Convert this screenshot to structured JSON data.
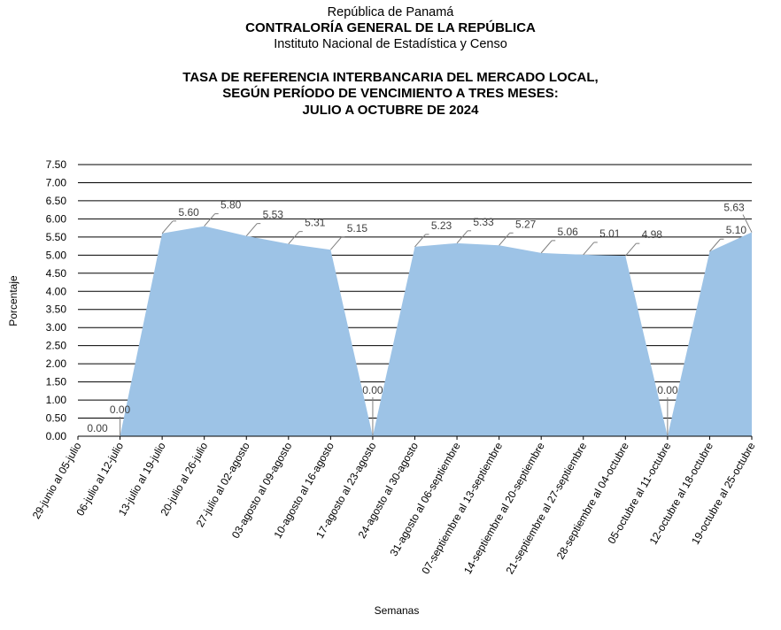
{
  "header": {
    "line1": "República de Panamá",
    "line2": "CONTRALORÍA GENERAL DE LA REPÚBLICA",
    "line3": "Instituto Nacional de Estadística y Censo"
  },
  "chart_data": {
    "type": "area",
    "title": [
      "TASA DE REFERENCIA INTERBANCARIA DEL MERCADO LOCAL,",
      "SEGÚN PERÍODO DE VENCIMIENTO A TRES MESES:",
      "JULIO A OCTUBRE DE 2024"
    ],
    "xlabel": "Semanas",
    "ylabel": "Porcentaje",
    "ylim": [
      0,
      7.5
    ],
    "ytick_step": 0.5,
    "grid": true,
    "fill_color": "#9dc3e6",
    "categories": [
      "29-junio al 05-julio",
      "06-julio al 12-julio",
      "13-julio al 19-julio",
      "20-julio al 26-julio",
      "27-julio al 02-agosto",
      "03-agosto al 09-agosto",
      "10-agosto al 16-agosto",
      "17-agosto al 23-agosto",
      "24-agosto al 30-agosto",
      "31-agosto al 06-septiembre",
      "07-septiembre al 13-septiembre",
      "14-septiembre al 20-septiembre",
      "21-septiembre al 27-septiembre",
      "28-septiembre al 04-octubre",
      "05-octubre al 11-octubre",
      "12-octubre al 18-octubre",
      "19-octubre al 25-octubre"
    ],
    "values": [
      0.0,
      0.0,
      5.6,
      5.8,
      5.53,
      5.31,
      5.15,
      0.0,
      5.23,
      5.33,
      5.27,
      5.06,
      5.01,
      4.98,
      0.0,
      5.1,
      5.63
    ]
  }
}
